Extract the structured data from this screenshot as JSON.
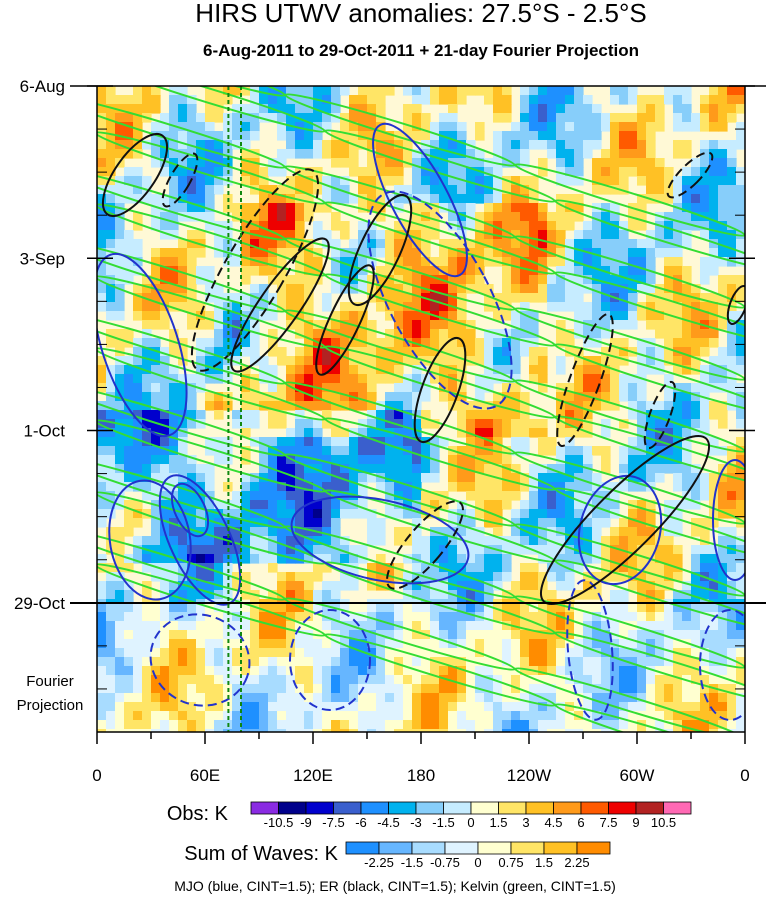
{
  "chart_data": {
    "type": "heatmap",
    "title": "HIRS UTWV anomalies: 27.5°S - 2.5°S",
    "subtitle": "6-Aug-2011 to 29-Oct-2011 + 21-day Fourier Projection",
    "x_ticks": [
      "0",
      "60E",
      "120E",
      "180",
      "120W",
      "60W",
      "0"
    ],
    "x_tick_lon": [
      0,
      60,
      120,
      180,
      240,
      300,
      360
    ],
    "y_ticks": [
      "6-Aug",
      "3-Sep",
      "1-Oct",
      "29-Oct"
    ],
    "y_tick_day": [
      0,
      28,
      56,
      84
    ],
    "days_total": 105,
    "projection_label": [
      "Fourier",
      "Projection"
    ],
    "obs_colorbar": {
      "label": "Obs: K",
      "levels": [
        "-10.5",
        "-9",
        "-7.5",
        "-6",
        "-4.5",
        "-3",
        "-1.5",
        "0",
        "1.5",
        "3",
        "4.5",
        "6",
        "7.5",
        "9",
        "10.5"
      ],
      "colors": [
        "#8a2be2",
        "#00008b",
        "#0000cd",
        "#3a5fcd",
        "#1e90ff",
        "#00b2ee",
        "#87cefa",
        "#c6ecff",
        "#ffffd0",
        "#ffe566",
        "#ffc125",
        "#ff9a1a",
        "#ff5a00",
        "#ee0000",
        "#b22222",
        "#ff69b4"
      ]
    },
    "waves_colorbar": {
      "label": "Sum of Waves: K",
      "levels": [
        "-2.25",
        "-1.5",
        "-0.75",
        "0",
        "0.75",
        "1.5",
        "2.25"
      ],
      "colors": [
        "#1e90ff",
        "#66b6ff",
        "#a8dcff",
        "#dff3ff",
        "#ffffd0",
        "#ffe566",
        "#ffc125",
        "#ff8c00"
      ]
    },
    "reference_lines_lon": [
      73,
      80
    ],
    "contours_legend": "MJO (blue, CINT=1.5); ER (black, CINT=1.5); Kelvin (green, CINT=1.5)"
  }
}
